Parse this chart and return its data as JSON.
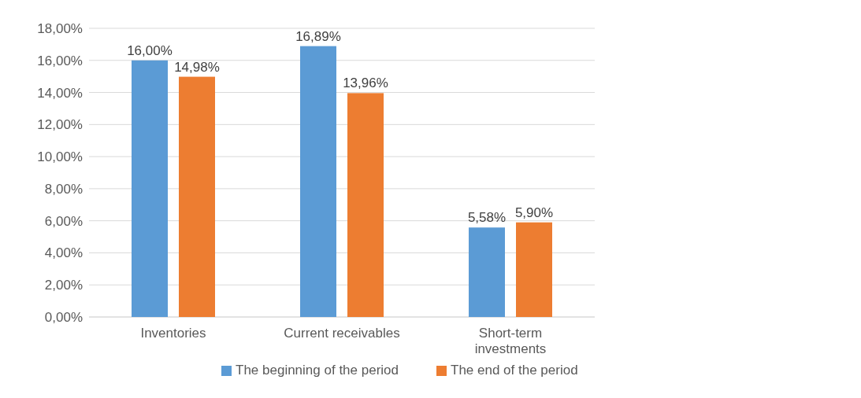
{
  "chart_data": {
    "type": "bar",
    "categories": [
      "Inventories",
      "Current receivables",
      "Short-term investments"
    ],
    "series": [
      {
        "name": "The beginning of the period",
        "color": "#5b9bd5",
        "values": [
          16.0,
          16.89,
          5.58
        ],
        "value_labels": [
          "16,00%",
          "16,89%",
          "5,58%"
        ]
      },
      {
        "name": "The end of the period",
        "color": "#ed7d31",
        "values": [
          14.98,
          13.96,
          5.9
        ],
        "value_labels": [
          "14,98%",
          "13,96%",
          "5,90%"
        ]
      }
    ],
    "ylim": [
      0,
      18
    ],
    "yticks": [
      {
        "value": 0,
        "label": "0,00%"
      },
      {
        "value": 2,
        "label": "2,00%"
      },
      {
        "value": 4,
        "label": "4,00%"
      },
      {
        "value": 6,
        "label": "6,00%"
      },
      {
        "value": 8,
        "label": "8,00%"
      },
      {
        "value": 10,
        "label": "10,00%"
      },
      {
        "value": 12,
        "label": "12,00%"
      },
      {
        "value": 14,
        "label": "14,00%"
      },
      {
        "value": 16,
        "label": "16,00%"
      },
      {
        "value": 18,
        "label": "18,00%"
      }
    ],
    "grid": "y",
    "legend": "bottom"
  }
}
